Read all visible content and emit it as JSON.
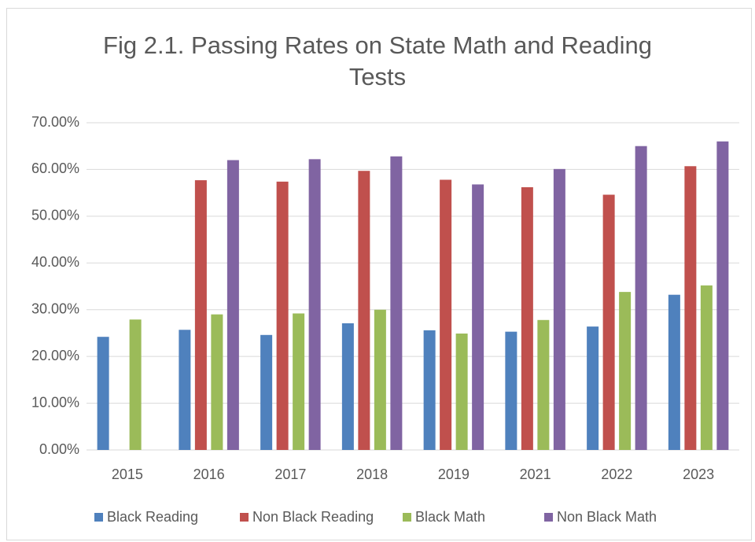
{
  "chart_data": {
    "type": "bar",
    "title": "Fig 2.1. Passing Rates on State Math and Reading Tests",
    "categories": [
      "2015",
      "2016",
      "2017",
      "2018",
      "2019",
      "2021",
      "2022",
      "2023"
    ],
    "series": [
      {
        "name": "Black Reading",
        "color": "#4f81bd",
        "values": [
          24.2,
          25.7,
          24.6,
          27.1,
          25.6,
          25.3,
          26.4,
          33.2
        ]
      },
      {
        "name": "Non Black Reading",
        "color": "#c0504d",
        "values": [
          null,
          57.7,
          57.4,
          59.7,
          57.8,
          56.2,
          54.6,
          60.7
        ]
      },
      {
        "name": "Black Math",
        "color": "#9bbb59",
        "values": [
          27.9,
          29.0,
          29.2,
          30.0,
          24.9,
          27.8,
          33.8,
          35.2
        ]
      },
      {
        "name": "Non Black Math",
        "color": "#8064a2",
        "values": [
          null,
          62.0,
          62.2,
          62.8,
          56.8,
          60.1,
          65.0,
          66.0
        ]
      }
    ],
    "ylim": [
      0,
      70
    ],
    "yticks": [
      {
        "value": 0,
        "label": "0.00%"
      },
      {
        "value": 10,
        "label": "10.00%"
      },
      {
        "value": 20,
        "label": "20.00%"
      },
      {
        "value": 30,
        "label": "30.00%"
      },
      {
        "value": 40,
        "label": "40.00%"
      },
      {
        "value": 50,
        "label": "50.00%"
      },
      {
        "value": 60,
        "label": "60.00%"
      },
      {
        "value": 70,
        "label": "70.00%"
      }
    ],
    "grid": true,
    "legend": "bottom"
  }
}
